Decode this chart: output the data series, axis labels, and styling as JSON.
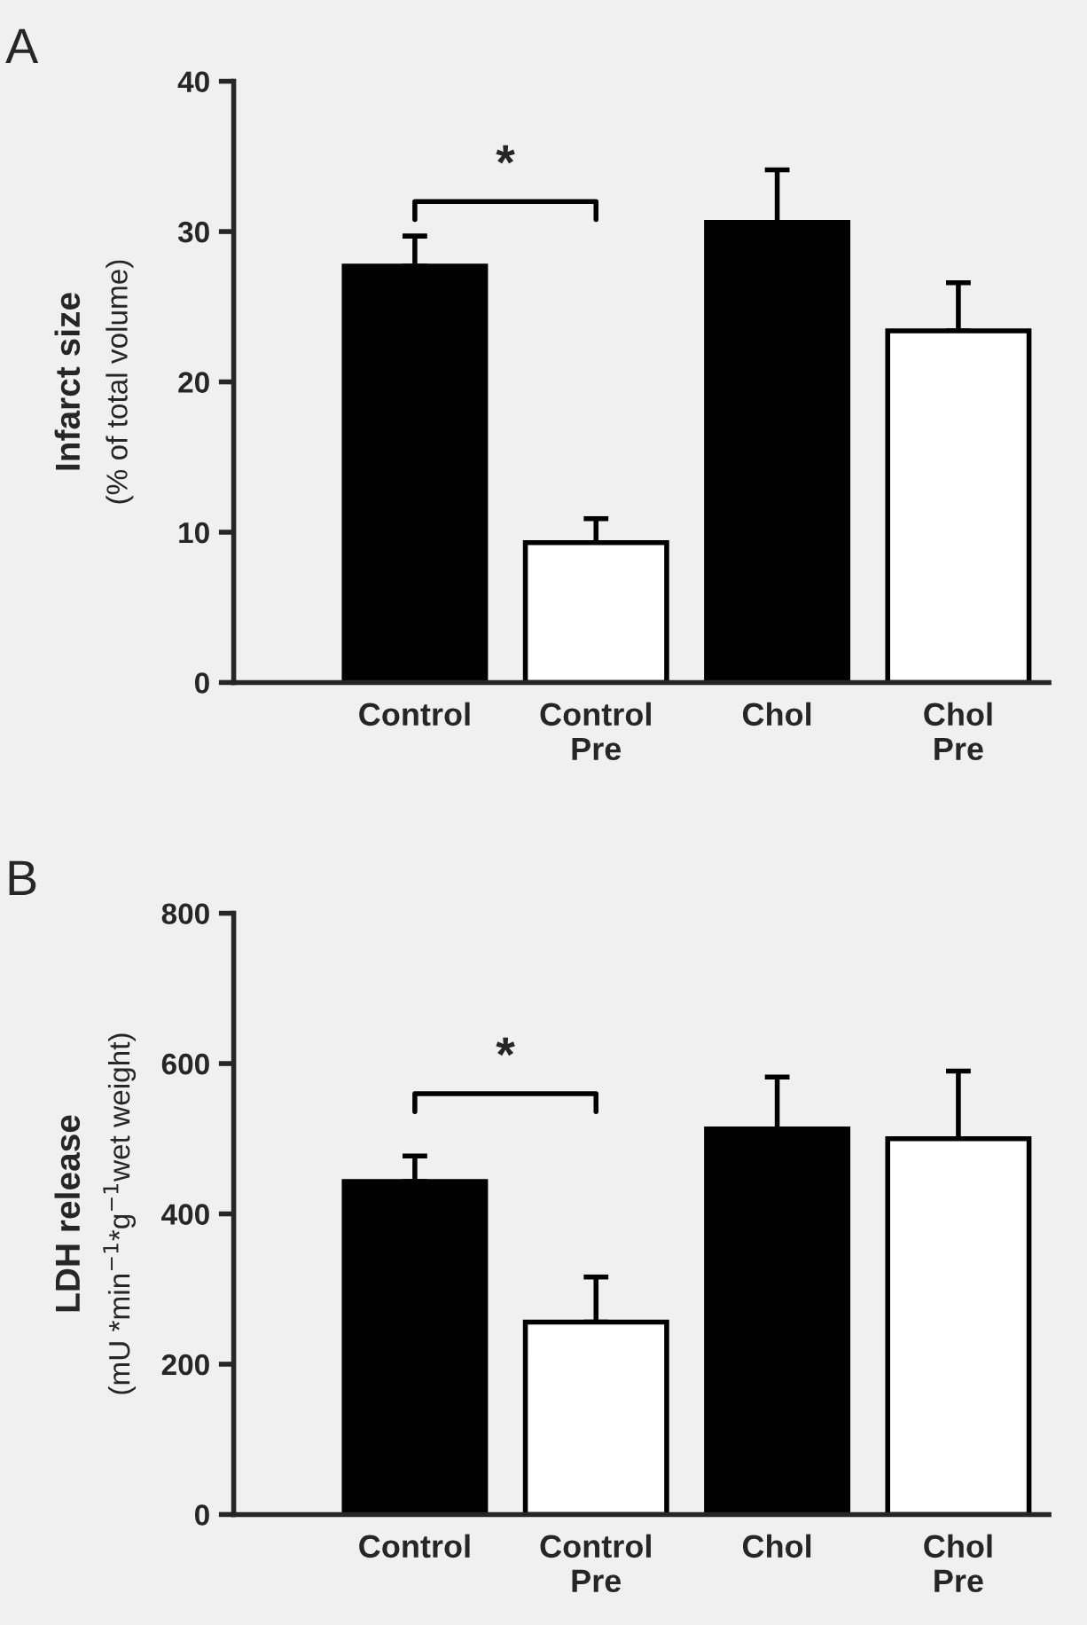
{
  "chart_data": [
    {
      "type": "bar",
      "title": "A",
      "ylabel": "Infarct size\n(% of total volume)",
      "categories": [
        "Control",
        "Control\nPre",
        "Chol",
        "Chol\nPre"
      ],
      "values": [
        27.7,
        9.3,
        30.6,
        23.4
      ],
      "errors": [
        2.0,
        1.6,
        3.5,
        3.2
      ],
      "colors": [
        "#000000",
        "#ffffff",
        "#000000",
        "#ffffff"
      ],
      "ylim": [
        0,
        40
      ],
      "yticks": [
        0,
        10,
        20,
        30,
        40
      ],
      "grid": false,
      "legend": false,
      "annotations": [
        "*"
      ]
    },
    {
      "type": "bar",
      "title": "B",
      "ylabel": "LDH release\n(mU *min$^{−1}$*g$^{−1}$wet weight)",
      "categories": [
        "Control",
        "Control\nPre",
        "Chol",
        "Chol\nPre"
      ],
      "values": [
        443,
        256,
        513,
        500
      ],
      "errors": [
        34,
        60,
        69,
        90
      ],
      "colors": [
        "#000000",
        "#ffffff",
        "#000000",
        "#ffffff"
      ],
      "ylim": [
        0,
        800
      ],
      "yticks": [
        0,
        200,
        400,
        600,
        800
      ],
      "grid": false,
      "legend": false,
      "annotations": [
        "*"
      ]
    }
  ]
}
